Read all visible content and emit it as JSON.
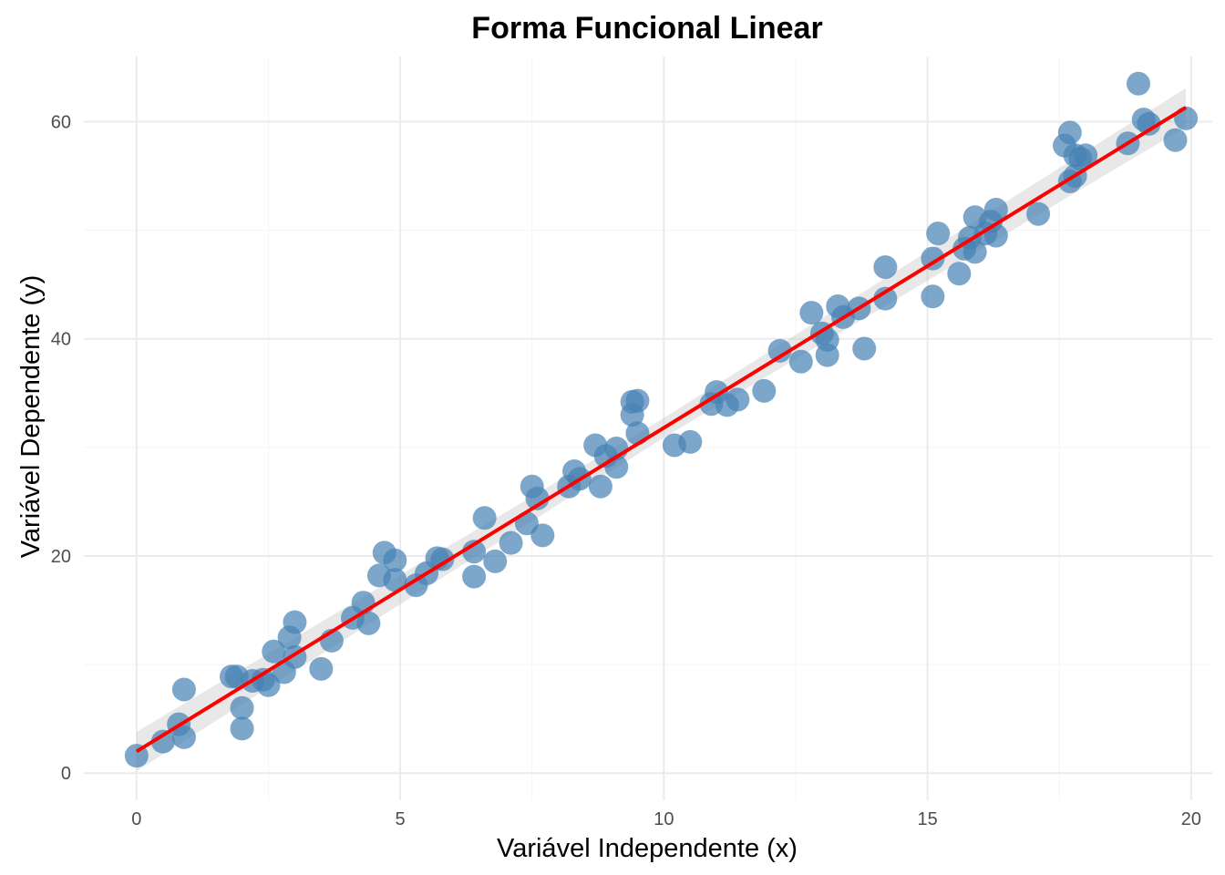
{
  "chart_data": {
    "type": "scatter",
    "title": "Forma Funcional Linear",
    "xlabel": "Variável Independente (x)",
    "ylabel": "Variável Dependente (y)",
    "xlim": [
      -1,
      20.4
    ],
    "ylim": [
      -2.5,
      66
    ],
    "xticks": [
      0,
      5,
      10,
      15,
      20
    ],
    "yticks": [
      0,
      20,
      40,
      60
    ],
    "grid": true,
    "colors": {
      "points": "#4682b4",
      "fit_line": "#ff0000",
      "band": "#bebebe"
    },
    "fit": {
      "intercept": 2.0,
      "slope": 2.98,
      "x_range": [
        0,
        19.9
      ]
    },
    "points": [
      {
        "x": 0.0,
        "y": 1.6
      },
      {
        "x": 0.5,
        "y": 2.9
      },
      {
        "x": 0.8,
        "y": 4.5
      },
      {
        "x": 0.9,
        "y": 3.3
      },
      {
        "x": 0.9,
        "y": 7.7
      },
      {
        "x": 1.8,
        "y": 8.9
      },
      {
        "x": 1.9,
        "y": 8.9
      },
      {
        "x": 2.0,
        "y": 6.0
      },
      {
        "x": 2.0,
        "y": 4.1
      },
      {
        "x": 2.2,
        "y": 8.5
      },
      {
        "x": 2.4,
        "y": 8.6
      },
      {
        "x": 2.5,
        "y": 8.1
      },
      {
        "x": 2.6,
        "y": 11.2
      },
      {
        "x": 2.8,
        "y": 9.3
      },
      {
        "x": 2.9,
        "y": 12.5
      },
      {
        "x": 3.0,
        "y": 10.7
      },
      {
        "x": 3.0,
        "y": 13.9
      },
      {
        "x": 3.5,
        "y": 9.6
      },
      {
        "x": 3.7,
        "y": 12.2
      },
      {
        "x": 4.1,
        "y": 14.3
      },
      {
        "x": 4.3,
        "y": 15.7
      },
      {
        "x": 4.4,
        "y": 13.8
      },
      {
        "x": 4.6,
        "y": 18.2
      },
      {
        "x": 4.7,
        "y": 20.3
      },
      {
        "x": 4.9,
        "y": 19.6
      },
      {
        "x": 4.9,
        "y": 17.8
      },
      {
        "x": 5.3,
        "y": 17.3
      },
      {
        "x": 5.5,
        "y": 18.4
      },
      {
        "x": 5.7,
        "y": 19.8
      },
      {
        "x": 5.8,
        "y": 19.7
      },
      {
        "x": 6.4,
        "y": 20.4
      },
      {
        "x": 6.4,
        "y": 18.1
      },
      {
        "x": 6.6,
        "y": 23.5
      },
      {
        "x": 6.8,
        "y": 19.5
      },
      {
        "x": 7.1,
        "y": 21.2
      },
      {
        "x": 7.4,
        "y": 23.0
      },
      {
        "x": 7.5,
        "y": 26.4
      },
      {
        "x": 7.6,
        "y": 25.3
      },
      {
        "x": 7.7,
        "y": 21.9
      },
      {
        "x": 8.2,
        "y": 26.4
      },
      {
        "x": 8.3,
        "y": 27.8
      },
      {
        "x": 8.4,
        "y": 27.1
      },
      {
        "x": 8.7,
        "y": 30.2
      },
      {
        "x": 8.8,
        "y": 26.4
      },
      {
        "x": 8.9,
        "y": 29.2
      },
      {
        "x": 9.1,
        "y": 28.2
      },
      {
        "x": 9.1,
        "y": 29.9
      },
      {
        "x": 9.4,
        "y": 33.0
      },
      {
        "x": 9.4,
        "y": 34.2
      },
      {
        "x": 9.5,
        "y": 34.3
      },
      {
        "x": 9.5,
        "y": 31.3
      },
      {
        "x": 10.2,
        "y": 30.2
      },
      {
        "x": 10.5,
        "y": 30.5
      },
      {
        "x": 10.9,
        "y": 34.0
      },
      {
        "x": 11.0,
        "y": 35.1
      },
      {
        "x": 11.2,
        "y": 33.9
      },
      {
        "x": 11.4,
        "y": 34.4
      },
      {
        "x": 11.9,
        "y": 35.2
      },
      {
        "x": 12.2,
        "y": 38.9
      },
      {
        "x": 12.6,
        "y": 37.9
      },
      {
        "x": 12.8,
        "y": 42.4
      },
      {
        "x": 13.0,
        "y": 40.5
      },
      {
        "x": 13.1,
        "y": 39.9
      },
      {
        "x": 13.1,
        "y": 38.5
      },
      {
        "x": 13.3,
        "y": 43.0
      },
      {
        "x": 13.4,
        "y": 42.0
      },
      {
        "x": 13.7,
        "y": 42.8
      },
      {
        "x": 13.8,
        "y": 39.1
      },
      {
        "x": 14.2,
        "y": 43.7
      },
      {
        "x": 14.2,
        "y": 46.6
      },
      {
        "x": 15.1,
        "y": 43.9
      },
      {
        "x": 15.1,
        "y": 47.4
      },
      {
        "x": 15.2,
        "y": 49.7
      },
      {
        "x": 15.6,
        "y": 46.0
      },
      {
        "x": 15.7,
        "y": 48.3
      },
      {
        "x": 15.8,
        "y": 49.3
      },
      {
        "x": 15.9,
        "y": 51.2
      },
      {
        "x": 15.9,
        "y": 48.0
      },
      {
        "x": 16.1,
        "y": 49.7
      },
      {
        "x": 16.2,
        "y": 50.8
      },
      {
        "x": 16.3,
        "y": 49.5
      },
      {
        "x": 16.3,
        "y": 51.9
      },
      {
        "x": 17.1,
        "y": 51.5
      },
      {
        "x": 17.6,
        "y": 57.8
      },
      {
        "x": 17.7,
        "y": 59.0
      },
      {
        "x": 17.7,
        "y": 54.5
      },
      {
        "x": 17.8,
        "y": 56.9
      },
      {
        "x": 17.8,
        "y": 55.0
      },
      {
        "x": 17.9,
        "y": 56.6
      },
      {
        "x": 18.0,
        "y": 56.9
      },
      {
        "x": 18.8,
        "y": 58.0
      },
      {
        "x": 19.0,
        "y": 63.5
      },
      {
        "x": 19.1,
        "y": 60.2
      },
      {
        "x": 19.2,
        "y": 59.8
      },
      {
        "x": 19.7,
        "y": 58.3
      },
      {
        "x": 19.9,
        "y": 60.3
      }
    ]
  }
}
